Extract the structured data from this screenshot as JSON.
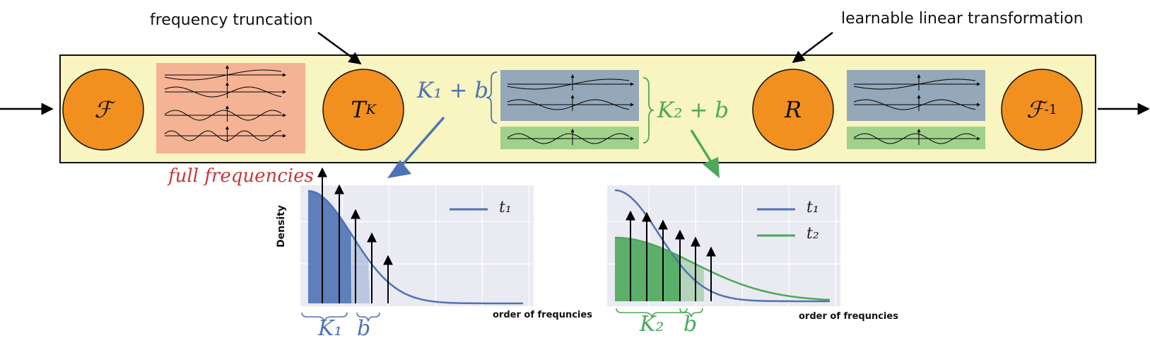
{
  "annotations": {
    "frequency_truncation": "frequency truncation",
    "learnable_linear": "learnable linear transformation",
    "full_frequencies": "full frequencies"
  },
  "operators": {
    "fourier": "ℱ",
    "truncation_main": "T",
    "truncation_sub": "K",
    "linear": "R",
    "inverse_fourier": "ℱ",
    "inverse_sup": "-1"
  },
  "groups": {
    "k1b": "K₁ + b",
    "k2b": "K₂ + b"
  },
  "left_plot": {
    "ylabel": "Density",
    "xlabel": "order of frequncies",
    "legend": [
      "t₁"
    ],
    "brace_k": "K₁",
    "brace_b": "b"
  },
  "right_plot": {
    "xlabel": "order of frequncies",
    "legend": [
      "t₁",
      "t₂"
    ],
    "brace_k": "K₂",
    "brace_b": "b"
  },
  "colors": {
    "panel": "#f8f5c0",
    "node": "#f2901f",
    "full_freq_box": "#f4b394",
    "blue_box": "#94a8ba",
    "green_box": "#a0d28c",
    "series_blue": "#4e73b5",
    "series_green": "#4ca85a",
    "plot_bg": "#eaeaf2"
  }
}
